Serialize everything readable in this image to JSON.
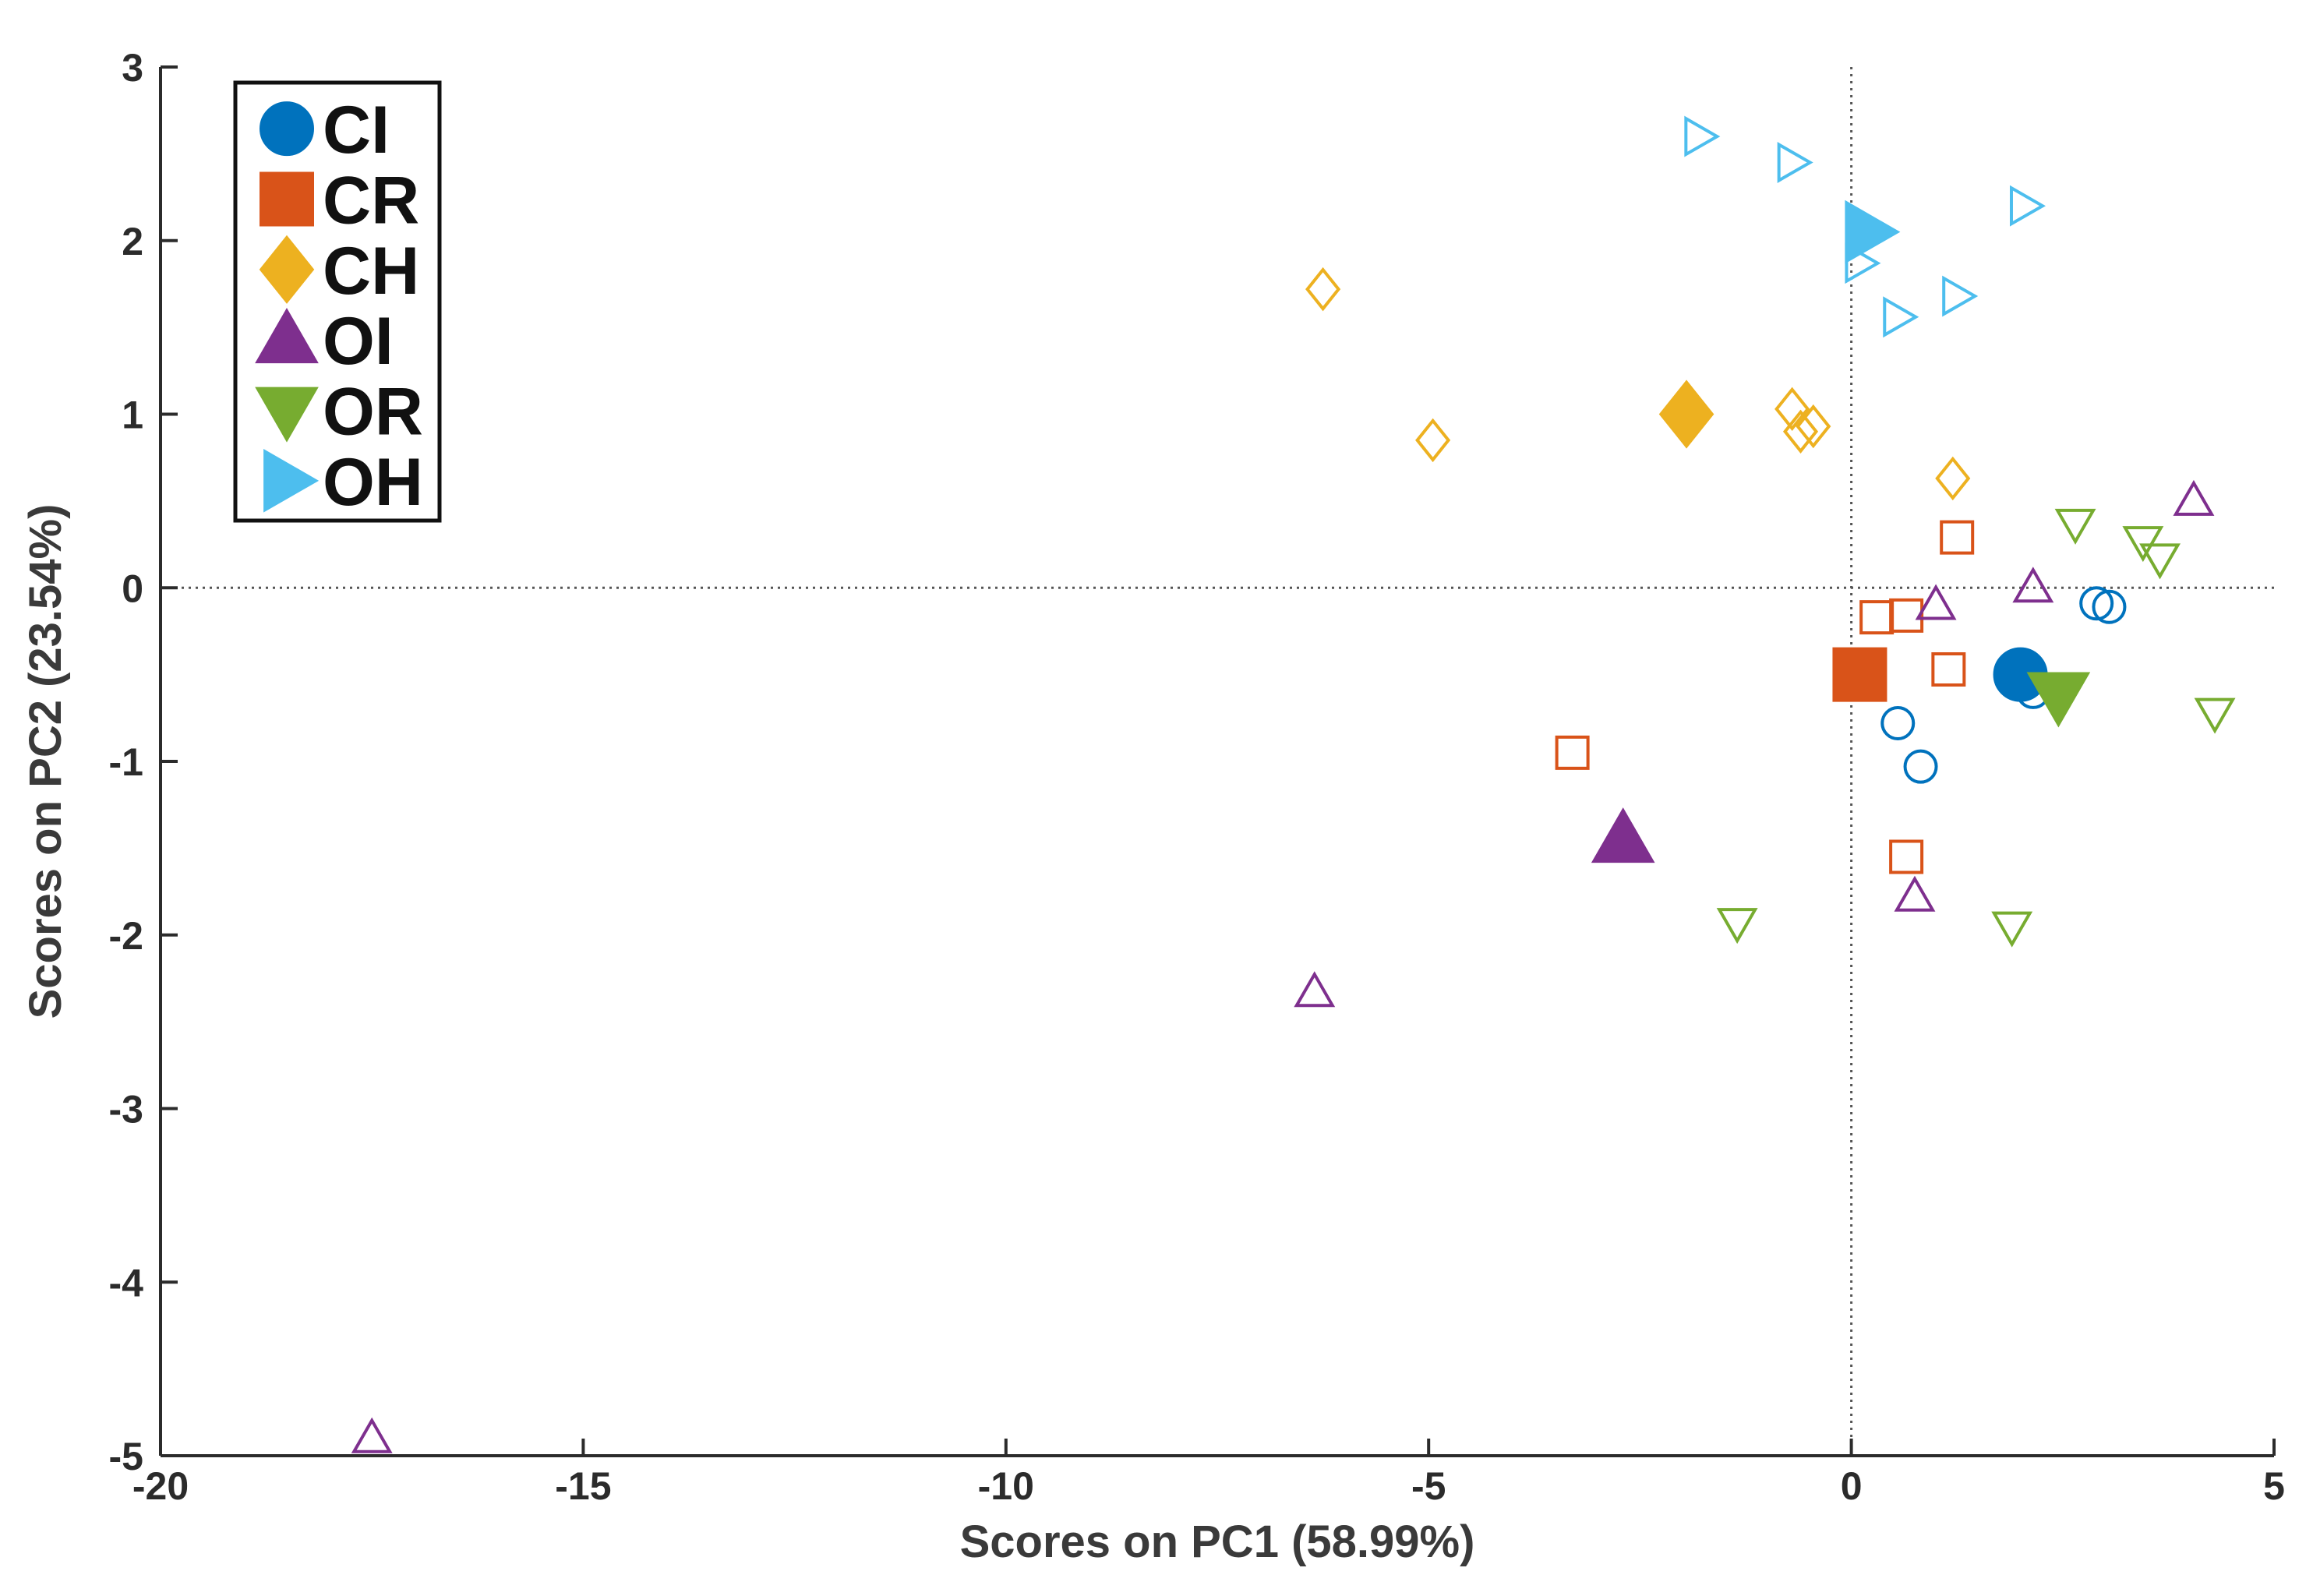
{
  "chart_data": {
    "type": "scatter",
    "title": "",
    "xlabel": "Scores on PC1 (58.99%)",
    "ylabel": "Scores on PC2 (23.54%)",
    "xlim": [
      -20,
      5
    ],
    "ylim": [
      -5,
      3
    ],
    "xticks": [
      -20,
      -15,
      -10,
      -5,
      0,
      5
    ],
    "yticks": [
      -5,
      -4,
      -3,
      -2,
      -1,
      0,
      1,
      2,
      3
    ],
    "xtick_labels": [
      "-20",
      "-15",
      "-10",
      "-5",
      "0",
      "5"
    ],
    "ytick_labels": [
      "-5",
      "-4",
      "-3",
      "-2",
      "-1",
      "0",
      "1",
      "2",
      "3"
    ],
    "reference_lines": {
      "x": 0,
      "y": 0,
      "style": "dotted"
    },
    "legend_position": "top-left",
    "series": [
      {
        "name": "CI",
        "marker": "circle",
        "color": "#0072BD",
        "centroid": {
          "x": 2.0,
          "y": -0.5
        },
        "points": [
          {
            "x": 2.9,
            "y": -0.09
          },
          {
            "x": 3.05,
            "y": -0.11
          },
          {
            "x": 2.15,
            "y": -0.6
          },
          {
            "x": 0.55,
            "y": -0.78
          },
          {
            "x": 0.82,
            "y": -1.03
          }
        ]
      },
      {
        "name": "CR",
        "marker": "square",
        "color": "#D95319",
        "centroid": {
          "x": 0.1,
          "y": -0.5
        },
        "points": [
          {
            "x": 1.25,
            "y": 0.29
          },
          {
            "x": 0.3,
            "y": -0.17
          },
          {
            "x": 0.65,
            "y": -0.16
          },
          {
            "x": 1.15,
            "y": -0.47
          },
          {
            "x": -3.3,
            "y": -0.95
          },
          {
            "x": 0.65,
            "y": -1.55
          }
        ]
      },
      {
        "name": "CH",
        "marker": "diamond",
        "color": "#EDB120",
        "centroid": {
          "x": -1.95,
          "y": 1.0
        },
        "points": [
          {
            "x": -6.25,
            "y": 1.72
          },
          {
            "x": -4.95,
            "y": 0.85
          },
          {
            "x": -0.7,
            "y": 1.03
          },
          {
            "x": -0.6,
            "y": 0.9
          },
          {
            "x": -0.45,
            "y": 0.93
          },
          {
            "x": 1.2,
            "y": 0.63
          }
        ]
      },
      {
        "name": "OI",
        "marker": "triangle-up",
        "color": "#7E2F8E",
        "centroid": {
          "x": -2.7,
          "y": -1.45
        },
        "points": [
          {
            "x": 4.05,
            "y": 0.5
          },
          {
            "x": 2.15,
            "y": 0.0
          },
          {
            "x": 1.0,
            "y": -0.1
          },
          {
            "x": 0.75,
            "y": -1.78
          },
          {
            "x": -6.35,
            "y": -2.33
          },
          {
            "x": -17.5,
            "y": -4.9
          }
        ]
      },
      {
        "name": "OR",
        "marker": "triangle-down",
        "color": "#77AC30",
        "centroid": {
          "x": 2.45,
          "y": -0.62
        },
        "points": [
          {
            "x": 2.65,
            "y": 0.37
          },
          {
            "x": 3.45,
            "y": 0.27
          },
          {
            "x": 3.65,
            "y": 0.17
          },
          {
            "x": 4.3,
            "y": -0.72
          },
          {
            "x": 1.9,
            "y": -1.95
          },
          {
            "x": -1.35,
            "y": -1.93
          }
        ]
      },
      {
        "name": "OH",
        "marker": "triangle-right",
        "color": "#4DBEEE",
        "centroid": {
          "x": 0.2,
          "y": 2.05
        },
        "points": [
          {
            "x": -1.8,
            "y": 2.6
          },
          {
            "x": -0.7,
            "y": 2.45
          },
          {
            "x": 2.05,
            "y": 2.2
          },
          {
            "x": 0.1,
            "y": 1.87
          },
          {
            "x": 1.25,
            "y": 1.68
          },
          {
            "x": 0.55,
            "y": 1.56
          }
        ]
      }
    ]
  }
}
